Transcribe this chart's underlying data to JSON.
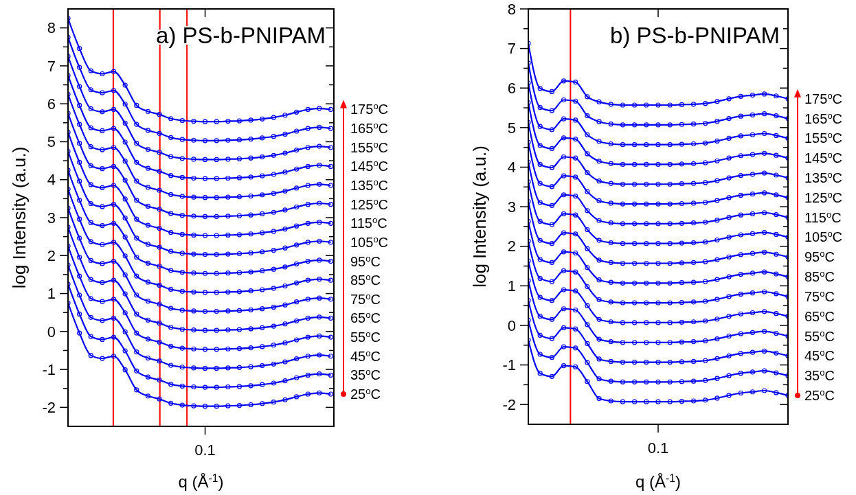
{
  "chart_data": [
    {
      "type": "line",
      "title": "a) PS-b-PNIPAM",
      "xlabel": "q (Å$^{-1}$)",
      "ylabel": "log Intensity (a.u.)",
      "marker": "circle",
      "legend": "right",
      "ylim": [
        -2.5,
        8.5
      ],
      "yticks": [
        -2,
        {
          "value": -1.5,
          "label": null
        },
        -1,
        {
          "value": -0.5,
          "label": null
        },
        0,
        {
          "value": 0.5,
          "label": null
        },
        1,
        {
          "value": 1.5,
          "label": null
        },
        2,
        {
          "value": 2.5,
          "label": null
        },
        3,
        {
          "value": 3.5,
          "label": null
        },
        4,
        {
          "value": 4.5,
          "label": null
        },
        5,
        {
          "value": 5.5,
          "label": null
        },
        6,
        {
          "value": 6.5,
          "label": null
        },
        7,
        {
          "value": 7.5,
          "label": null
        },
        8
      ],
      "categories": [
        null,
        null,
        null,
        null,
        null,
        null,
        null,
        null,
        null,
        null,
        null,
        null,
        "0.1",
        null,
        null,
        null,
        null,
        null,
        null,
        null,
        null,
        null,
        null,
        null
      ],
      "series": [
        {
          "name": "175$^{o}$C",
          "color": "#0000ff",
          "values": [
            8.25,
            7.46,
            6.87,
            6.79,
            6.85,
            6.49,
            5.96,
            5.8,
            5.72,
            5.61,
            5.56,
            5.54,
            5.53,
            5.53,
            5.54,
            5.55,
            5.57,
            5.6,
            5.64,
            5.7,
            5.78,
            5.85,
            5.88,
            5.85
          ]
        },
        {
          "name": "165$^{o}$C",
          "color": "#0000ff",
          "values": [
            7.75,
            6.96,
            6.37,
            6.29,
            6.35,
            5.99,
            5.46,
            5.3,
            5.22,
            5.11,
            5.06,
            5.04,
            5.03,
            5.03,
            5.04,
            5.05,
            5.07,
            5.1,
            5.14,
            5.2,
            5.28,
            5.35,
            5.38,
            5.35
          ]
        },
        {
          "name": "155$^{o}$C",
          "color": "#0000ff",
          "values": [
            7.25,
            6.46,
            5.87,
            5.79,
            5.85,
            5.49,
            4.96,
            4.8,
            4.72,
            4.61,
            4.56,
            4.54,
            4.53,
            4.53,
            4.54,
            4.55,
            4.57,
            4.6,
            4.64,
            4.7,
            4.78,
            4.85,
            4.88,
            4.85
          ]
        },
        {
          "name": "145$^{o}$C",
          "color": "#0000ff",
          "values": [
            6.75,
            5.96,
            5.37,
            5.29,
            5.35,
            4.99,
            4.46,
            4.3,
            4.22,
            4.11,
            4.06,
            4.04,
            4.03,
            4.03,
            4.04,
            4.05,
            4.07,
            4.1,
            4.14,
            4.2,
            4.28,
            4.35,
            4.38,
            4.35
          ]
        },
        {
          "name": "135$^{o}$C",
          "color": "#0000ff",
          "values": [
            6.25,
            5.46,
            4.87,
            4.79,
            4.85,
            4.49,
            3.96,
            3.8,
            3.72,
            3.61,
            3.56,
            3.54,
            3.53,
            3.53,
            3.54,
            3.55,
            3.57,
            3.6,
            3.64,
            3.7,
            3.78,
            3.85,
            3.88,
            3.85
          ]
        },
        {
          "name": "125$^{o}$C",
          "color": "#0000ff",
          "values": [
            5.75,
            4.96,
            4.37,
            4.29,
            4.35,
            3.99,
            3.46,
            3.3,
            3.22,
            3.11,
            3.06,
            3.04,
            3.03,
            3.03,
            3.04,
            3.05,
            3.07,
            3.1,
            3.14,
            3.2,
            3.28,
            3.35,
            3.38,
            3.35
          ]
        },
        {
          "name": "115$^{o}$C",
          "color": "#0000ff",
          "values": [
            5.25,
            4.46,
            3.87,
            3.79,
            3.85,
            3.49,
            2.96,
            2.8,
            2.72,
            2.61,
            2.56,
            2.54,
            2.53,
            2.53,
            2.54,
            2.55,
            2.57,
            2.6,
            2.64,
            2.7,
            2.78,
            2.85,
            2.88,
            2.85
          ]
        },
        {
          "name": "105$^{o}$C",
          "color": "#0000ff",
          "values": [
            4.75,
            3.96,
            3.37,
            3.29,
            3.35,
            2.99,
            2.46,
            2.3,
            2.22,
            2.11,
            2.06,
            2.04,
            2.03,
            2.03,
            2.04,
            2.05,
            2.07,
            2.1,
            2.14,
            2.2,
            2.28,
            2.35,
            2.38,
            2.35
          ]
        },
        {
          "name": "95$^{o}$C",
          "color": "#0000ff",
          "values": [
            4.25,
            3.46,
            2.87,
            2.79,
            2.85,
            2.49,
            1.96,
            1.8,
            1.72,
            1.61,
            1.56,
            1.54,
            1.53,
            1.53,
            1.54,
            1.55,
            1.57,
            1.6,
            1.64,
            1.7,
            1.78,
            1.85,
            1.88,
            1.85
          ]
        },
        {
          "name": "85$^{o}$C",
          "color": "#0000ff",
          "values": [
            3.75,
            2.96,
            2.37,
            2.29,
            2.35,
            1.99,
            1.46,
            1.3,
            1.22,
            1.11,
            1.06,
            1.04,
            1.03,
            1.03,
            1.04,
            1.05,
            1.07,
            1.1,
            1.14,
            1.2,
            1.28,
            1.35,
            1.38,
            1.35
          ]
        },
        {
          "name": "75$^{o}$C",
          "color": "#0000ff",
          "values": [
            3.25,
            2.46,
            1.87,
            1.79,
            1.85,
            1.49,
            0.96,
            0.8,
            0.72,
            0.61,
            0.56,
            0.54,
            0.53,
            0.53,
            0.54,
            0.55,
            0.57,
            0.6,
            0.64,
            0.7,
            0.78,
            0.85,
            0.88,
            0.85
          ]
        },
        {
          "name": "65$^{o}$C",
          "color": "#0000ff",
          "values": [
            2.75,
            1.96,
            1.37,
            1.29,
            1.35,
            0.99,
            0.46,
            0.3,
            0.22,
            0.11,
            0.06,
            0.04,
            0.03,
            0.03,
            0.04,
            0.05,
            0.07,
            0.1,
            0.14,
            0.2,
            0.28,
            0.35,
            0.38,
            0.35
          ]
        },
        {
          "name": "55$^{o}$C",
          "color": "#0000ff",
          "values": [
            2.25,
            1.46,
            0.87,
            0.79,
            0.85,
            0.49,
            -0.04,
            -0.2,
            -0.28,
            -0.39,
            -0.44,
            -0.46,
            -0.47,
            -0.47,
            -0.46,
            -0.45,
            -0.43,
            -0.4,
            -0.36,
            -0.3,
            -0.22,
            -0.15,
            -0.12,
            -0.15
          ]
        },
        {
          "name": "45$^{o}$C",
          "color": "#0000ff",
          "values": [
            1.75,
            0.96,
            0.37,
            0.29,
            0.35,
            -0.01,
            -0.54,
            -0.7,
            -0.78,
            -0.89,
            -0.94,
            -0.96,
            -0.97,
            -0.97,
            -0.96,
            -0.95,
            -0.93,
            -0.9,
            -0.86,
            -0.8,
            -0.72,
            -0.65,
            -0.62,
            -0.65
          ]
        },
        {
          "name": "35$^{o}$C",
          "color": "#0000ff",
          "values": [
            1.25,
            0.46,
            -0.13,
            -0.21,
            -0.15,
            -0.51,
            -1.04,
            -1.2,
            -1.28,
            -1.39,
            -1.44,
            -1.46,
            -1.47,
            -1.47,
            -1.46,
            -1.45,
            -1.43,
            -1.4,
            -1.36,
            -1.3,
            -1.22,
            -1.15,
            -1.12,
            -1.15
          ]
        },
        {
          "name": "25$^{o}$C",
          "color": "#0000ff",
          "values": [
            0.75,
            -0.04,
            -0.63,
            -0.71,
            -0.65,
            -1.01,
            -1.54,
            -1.7,
            -1.78,
            -1.89,
            -1.94,
            -1.96,
            -1.97,
            -1.97,
            -1.96,
            -1.95,
            -1.93,
            -1.9,
            -1.86,
            -1.8,
            -1.72,
            -1.65,
            -1.62,
            -1.65
          ]
        }
      ]
    },
    {
      "type": "line",
      "title": "b) PS-b-PNIPAM",
      "xlabel": "q (Å$^{-1}$)",
      "ylabel": "log Intensity (a.u.)",
      "marker": "circle",
      "legend": "right",
      "ylim": [
        -2.5,
        8
      ],
      "yticks": [
        -2,
        {
          "value": -1.5,
          "label": null
        },
        -1,
        {
          "value": -0.5,
          "label": null
        },
        0,
        {
          "value": 0.5,
          "label": null
        },
        1,
        {
          "value": 1.5,
          "label": null
        },
        2,
        {
          "value": 2.5,
          "label": null
        },
        3,
        {
          "value": 3.5,
          "label": null
        },
        4,
        {
          "value": 4.5,
          "label": null
        },
        5,
        {
          "value": 5.5,
          "label": null
        },
        6,
        {
          "value": 6.5,
          "label": null
        },
        7,
        {
          "value": 7.5,
          "label": null
        },
        8
      ],
      "categories": [
        null,
        null,
        null,
        null,
        null,
        null,
        null,
        null,
        null,
        null,
        null,
        "0.1",
        null,
        null,
        null,
        null,
        null,
        null,
        null,
        null,
        null,
        null,
        null
      ],
      "series": [
        {
          "name": "175$^{o}$C",
          "color": "#0000ff",
          "values": [
            7.13,
            5.99,
            5.91,
            6.18,
            6.15,
            5.78,
            5.65,
            5.59,
            5.57,
            5.57,
            5.57,
            5.57,
            5.57,
            5.58,
            5.59,
            5.61,
            5.66,
            5.73,
            5.79,
            5.82,
            5.85,
            5.8,
            5.73
          ]
        },
        {
          "name": "165$^{o}$C",
          "color": "#0000ff",
          "values": [
            6.63,
            5.51,
            5.43,
            5.7,
            5.67,
            5.3,
            5.15,
            5.09,
            5.07,
            5.07,
            5.07,
            5.07,
            5.07,
            5.08,
            5.09,
            5.11,
            5.16,
            5.23,
            5.29,
            5.32,
            5.35,
            5.3,
            5.23
          ]
        },
        {
          "name": "155$^{o}$C",
          "color": "#0000ff",
          "values": [
            6.13,
            5.03,
            4.95,
            5.22,
            5.19,
            4.82,
            4.65,
            4.59,
            4.57,
            4.57,
            4.57,
            4.57,
            4.57,
            4.58,
            4.59,
            4.61,
            4.66,
            4.73,
            4.79,
            4.82,
            4.85,
            4.8,
            4.73
          ]
        },
        {
          "name": "145$^{o}$C",
          "color": "#0000ff",
          "values": [
            5.63,
            4.55,
            4.47,
            4.74,
            4.71,
            4.34,
            4.15,
            4.09,
            4.07,
            4.07,
            4.07,
            4.07,
            4.07,
            4.08,
            4.09,
            4.11,
            4.16,
            4.23,
            4.29,
            4.32,
            4.35,
            4.3,
            4.23
          ]
        },
        {
          "name": "135$^{o}$C",
          "color": "#0000ff",
          "values": [
            5.13,
            4.07,
            3.99,
            4.26,
            4.23,
            3.86,
            3.65,
            3.59,
            3.57,
            3.57,
            3.57,
            3.57,
            3.57,
            3.58,
            3.59,
            3.61,
            3.66,
            3.73,
            3.79,
            3.82,
            3.85,
            3.8,
            3.73
          ]
        },
        {
          "name": "125$^{o}$C",
          "color": "#0000ff",
          "values": [
            4.63,
            3.59,
            3.51,
            3.78,
            3.75,
            3.38,
            3.15,
            3.09,
            3.07,
            3.07,
            3.07,
            3.07,
            3.07,
            3.08,
            3.09,
            3.11,
            3.16,
            3.23,
            3.29,
            3.32,
            3.35,
            3.3,
            3.23
          ]
        },
        {
          "name": "115$^{o}$C",
          "color": "#0000ff",
          "values": [
            4.13,
            3.11,
            3.03,
            3.3,
            3.27,
            2.9,
            2.65,
            2.59,
            2.57,
            2.57,
            2.57,
            2.57,
            2.57,
            2.58,
            2.59,
            2.61,
            2.66,
            2.73,
            2.79,
            2.82,
            2.85,
            2.8,
            2.73
          ]
        },
        {
          "name": "105$^{o}$C",
          "color": "#0000ff",
          "values": [
            3.63,
            2.63,
            2.55,
            2.82,
            2.79,
            2.42,
            2.15,
            2.09,
            2.07,
            2.07,
            2.07,
            2.07,
            2.07,
            2.08,
            2.09,
            2.11,
            2.16,
            2.23,
            2.29,
            2.32,
            2.35,
            2.3,
            2.23
          ]
        },
        {
          "name": "95$^{o}$C",
          "color": "#0000ff",
          "values": [
            3.13,
            2.15,
            2.07,
            2.34,
            2.31,
            1.94,
            1.65,
            1.59,
            1.57,
            1.57,
            1.57,
            1.57,
            1.57,
            1.58,
            1.59,
            1.61,
            1.66,
            1.73,
            1.79,
            1.82,
            1.85,
            1.8,
            1.73
          ]
        },
        {
          "name": "85$^{o}$C",
          "color": "#0000ff",
          "values": [
            2.63,
            1.67,
            1.59,
            1.86,
            1.83,
            1.46,
            1.15,
            1.09,
            1.07,
            1.07,
            1.07,
            1.07,
            1.07,
            1.08,
            1.09,
            1.11,
            1.16,
            1.23,
            1.29,
            1.32,
            1.35,
            1.3,
            1.23
          ]
        },
        {
          "name": "75$^{o}$C",
          "color": "#0000ff",
          "values": [
            2.13,
            1.19,
            1.11,
            1.38,
            1.35,
            0.98,
            0.65,
            0.59,
            0.57,
            0.57,
            0.57,
            0.57,
            0.57,
            0.58,
            0.59,
            0.61,
            0.66,
            0.73,
            0.79,
            0.82,
            0.85,
            0.8,
            0.73
          ]
        },
        {
          "name": "65$^{o}$C",
          "color": "#0000ff",
          "values": [
            1.63,
            0.71,
            0.63,
            0.9,
            0.87,
            0.5,
            0.15,
            0.09,
            0.07,
            0.07,
            0.07,
            0.07,
            0.07,
            0.08,
            0.09,
            0.11,
            0.16,
            0.23,
            0.29,
            0.32,
            0.35,
            0.3,
            0.23
          ]
        },
        {
          "name": "55$^{o}$C",
          "color": "#0000ff",
          "values": [
            1.13,
            0.23,
            0.15,
            0.42,
            0.39,
            0.02,
            -0.35,
            -0.41,
            -0.43,
            -0.43,
            -0.43,
            -0.43,
            -0.43,
            -0.42,
            -0.41,
            -0.39,
            -0.34,
            -0.27,
            -0.21,
            -0.18,
            -0.15,
            -0.2,
            -0.27
          ]
        },
        {
          "name": "45$^{o}$C",
          "color": "#0000ff",
          "values": [
            0.63,
            -0.25,
            -0.33,
            -0.06,
            -0.09,
            -0.46,
            -0.85,
            -0.91,
            -0.93,
            -0.93,
            -0.93,
            -0.93,
            -0.93,
            -0.92,
            -0.91,
            -0.89,
            -0.84,
            -0.77,
            -0.71,
            -0.68,
            -0.65,
            -0.7,
            -0.77
          ]
        },
        {
          "name": "35$^{o}$C",
          "color": "#0000ff",
          "values": [
            0.13,
            -0.73,
            -0.81,
            -0.54,
            -0.57,
            -0.94,
            -1.35,
            -1.41,
            -1.43,
            -1.43,
            -1.43,
            -1.43,
            -1.43,
            -1.42,
            -1.41,
            -1.39,
            -1.34,
            -1.27,
            -1.21,
            -1.18,
            -1.15,
            -1.2,
            -1.27
          ]
        },
        {
          "name": "25$^{o}$C",
          "color": "#0000ff",
          "values": [
            -0.37,
            -1.21,
            -1.29,
            -1.02,
            -1.05,
            -1.42,
            -1.85,
            -1.91,
            -1.93,
            -1.93,
            -1.93,
            -1.93,
            -1.93,
            -1.92,
            -1.91,
            -1.89,
            -1.84,
            -1.77,
            -1.71,
            -1.68,
            -1.65,
            -1.7,
            -1.77
          ]
        }
      ]
    }
  ]
}
